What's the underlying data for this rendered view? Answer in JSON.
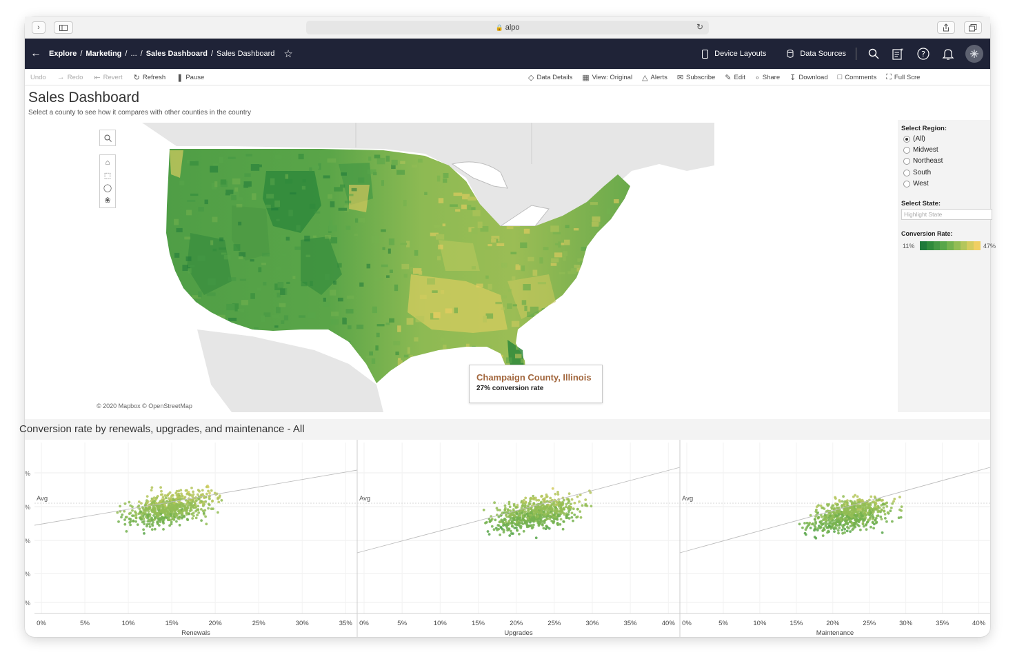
{
  "browser": {
    "url": "alpo"
  },
  "nav": {
    "breadcrumbs": [
      "Explore",
      "/",
      "Marketing",
      "/",
      "...",
      "/",
      "Sales Dashboard",
      "/",
      "Sales Dashboard"
    ],
    "device_layouts": "Device Layouts",
    "data_sources": "Data Sources"
  },
  "toolbar": {
    "undo": "Undo",
    "redo": "Redo",
    "revert": "Revert",
    "refresh": "Refresh",
    "pause": "Pause",
    "data_details": "Data Details",
    "view_original": "View: Original",
    "alerts": "Alerts",
    "subscribe": "Subscribe",
    "edit": "Edit",
    "share": "Share",
    "download": "Download",
    "comments": "Comments",
    "full_screen": "Full Scre"
  },
  "dashboard": {
    "title": "Sales Dashboard",
    "subtitle": "Select a county to see how it compares with other counties in the country"
  },
  "map": {
    "attribution": "© 2020 Mapbox © OpenStreetMap",
    "tooltip_title": "Champaign County, Illinois",
    "tooltip_value": "27% conversion rate"
  },
  "filters": {
    "region_label": "Select Region:",
    "regions": [
      "(All)",
      "Midwest",
      "Northeast",
      "South",
      "West"
    ],
    "selected_region": "(All)",
    "state_label": "Select State:",
    "state_placeholder": "Highlight State",
    "conversion_label": "Conversion Rate:",
    "conversion_min": "11%",
    "conversion_max": "47%",
    "colors": [
      "#1f7a3a",
      "#2f8a3c",
      "#449845",
      "#58a64a",
      "#74b24f",
      "#93bd55",
      "#b4c65b",
      "#d4cc5f",
      "#f0cf62"
    ]
  },
  "scatter": {
    "title": "Conversion rate by renewals, upgrades, and maintenance - All",
    "avg_label": "Avg",
    "y_tick_suffix": "%",
    "panels": [
      {
        "xlabel": "Renewals",
        "ticks": [
          "0%",
          "5%",
          "10%",
          "15%",
          "20%",
          "25%",
          "30%",
          "35%"
        ]
      },
      {
        "xlabel": "Upgrades",
        "ticks": [
          "0%",
          "5%",
          "10%",
          "15%",
          "20%",
          "25%",
          "30%",
          "35%",
          "40%"
        ]
      },
      {
        "xlabel": "Maintenance",
        "ticks": [
          "0%",
          "5%",
          "10%",
          "15%",
          "20%",
          "25%",
          "30%",
          "35%",
          "40%"
        ]
      }
    ]
  }
}
